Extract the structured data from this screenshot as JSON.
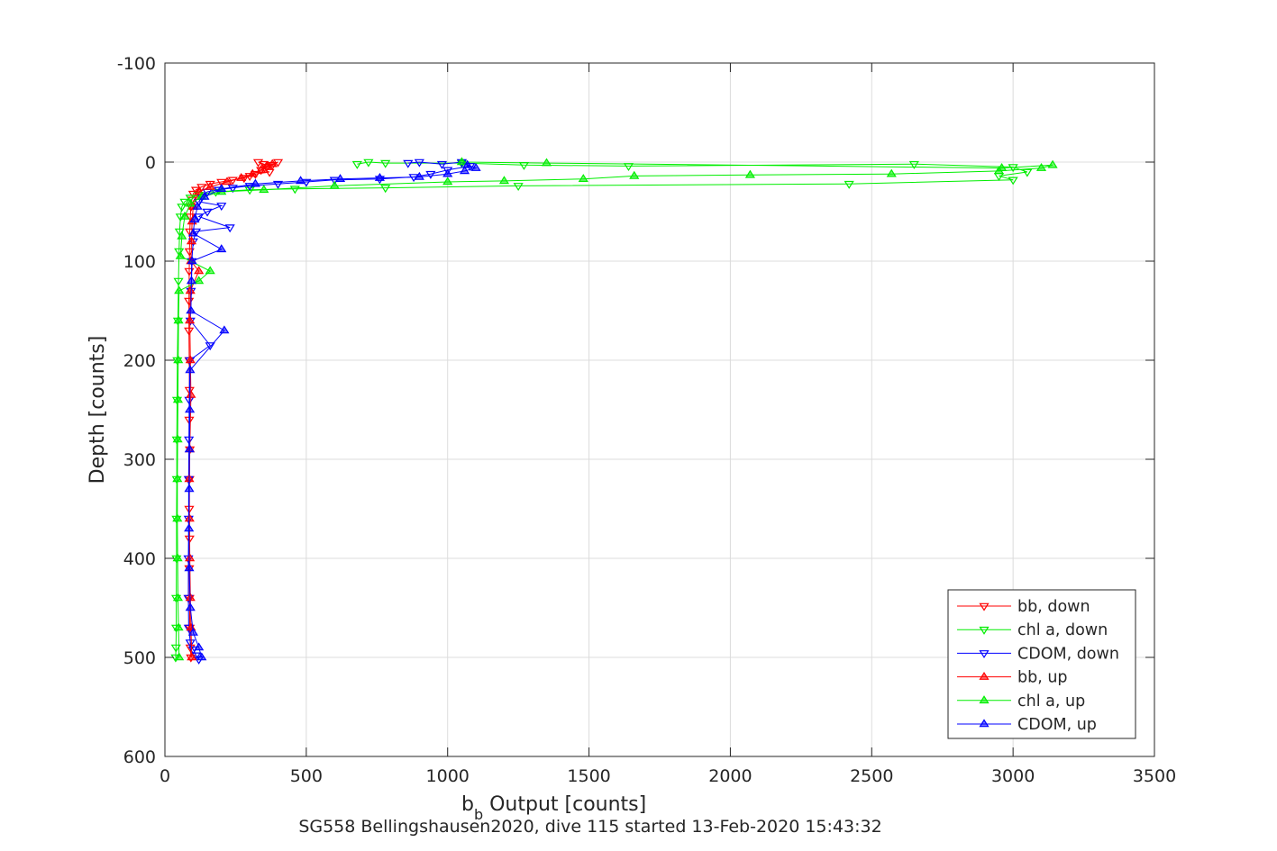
{
  "chart_data": {
    "type": "line",
    "title": "",
    "xlabel_main": "b",
    "xlabel_sub": "b",
    "xlabel_rest": " Output [counts]",
    "ylabel": "Depth [counts]",
    "caption": "SG558 Bellingshausen2020, dive 115 started 13-Feb-2020 15:43:32",
    "xlim": [
      0,
      3500
    ],
    "ylim": [
      -100,
      600
    ],
    "y_reversed": true,
    "grid": true,
    "legend_position": "bottom-right",
    "x_ticks": [
      0,
      500,
      1000,
      1500,
      2000,
      2500,
      3000,
      3500
    ],
    "x_tick_labels": [
      "0",
      "500",
      "1000",
      "1500",
      "2000",
      "2500",
      "3000",
      "3500"
    ],
    "y_ticks": [
      -100,
      0,
      100,
      200,
      300,
      400,
      500,
      600
    ],
    "y_tick_labels": [
      "-100",
      "0",
      "100",
      "200",
      "300",
      "400",
      "500",
      "600"
    ],
    "series": [
      {
        "name": "bb, down",
        "color": "#ff0000",
        "marker": "triangle-down",
        "points": [
          [
            330,
            0
          ],
          [
            350,
            2
          ],
          [
            380,
            3
          ],
          [
            400,
            0
          ],
          [
            360,
            5
          ],
          [
            340,
            8
          ],
          [
            370,
            10
          ],
          [
            320,
            12
          ],
          [
            300,
            14
          ],
          [
            280,
            16
          ],
          [
            240,
            18
          ],
          [
            200,
            20
          ],
          [
            160,
            22
          ],
          [
            130,
            25
          ],
          [
            110,
            28
          ],
          [
            100,
            32
          ],
          [
            95,
            38
          ],
          [
            92,
            45
          ],
          [
            90,
            55
          ],
          [
            88,
            70
          ],
          [
            87,
            90
          ],
          [
            86,
            110
          ],
          [
            85,
            140
          ],
          [
            85,
            170
          ],
          [
            86,
            200
          ],
          [
            87,
            230
          ],
          [
            86,
            260
          ],
          [
            88,
            290
          ],
          [
            87,
            320
          ],
          [
            86,
            350
          ],
          [
            87,
            380
          ],
          [
            86,
            410
          ],
          [
            87,
            440
          ],
          [
            88,
            470
          ],
          [
            90,
            490
          ],
          [
            92,
            500
          ]
        ]
      },
      {
        "name": "chl a, down",
        "color": "#00ee00",
        "marker": "triangle-down",
        "points": [
          [
            680,
            2
          ],
          [
            720,
            0
          ],
          [
            780,
            1
          ],
          [
            1050,
            1
          ],
          [
            1270,
            3
          ],
          [
            1640,
            4
          ],
          [
            2650,
            2
          ],
          [
            3000,
            5
          ],
          [
            3050,
            10
          ],
          [
            2950,
            14
          ],
          [
            3000,
            18
          ],
          [
            2420,
            22
          ],
          [
            1250,
            24
          ],
          [
            780,
            26
          ],
          [
            460,
            27
          ],
          [
            300,
            28
          ],
          [
            180,
            30
          ],
          [
            120,
            33
          ],
          [
            90,
            36
          ],
          [
            70,
            40
          ],
          [
            60,
            45
          ],
          [
            55,
            55
          ],
          [
            52,
            70
          ],
          [
            50,
            90
          ],
          [
            48,
            120
          ],
          [
            46,
            160
          ],
          [
            44,
            200
          ],
          [
            43,
            240
          ],
          [
            42,
            280
          ],
          [
            42,
            320
          ],
          [
            41,
            360
          ],
          [
            41,
            400
          ],
          [
            40,
            440
          ],
          [
            40,
            470
          ],
          [
            39,
            490
          ],
          [
            38,
            500
          ]
        ]
      },
      {
        "name": "CDOM, down",
        "color": "#0000ff",
        "marker": "triangle-down",
        "points": [
          [
            860,
            1
          ],
          [
            900,
            0
          ],
          [
            980,
            2
          ],
          [
            1050,
            0
          ],
          [
            1080,
            4
          ],
          [
            1000,
            8
          ],
          [
            940,
            12
          ],
          [
            880,
            15
          ],
          [
            760,
            17
          ],
          [
            600,
            18
          ],
          [
            500,
            20
          ],
          [
            400,
            22
          ],
          [
            300,
            24
          ],
          [
            240,
            26
          ],
          [
            190,
            28
          ],
          [
            150,
            30
          ],
          [
            130,
            35
          ],
          [
            120,
            40
          ],
          [
            200,
            44
          ],
          [
            150,
            50
          ],
          [
            120,
            55
          ],
          [
            230,
            66
          ],
          [
            110,
            70
          ],
          [
            100,
            80
          ],
          [
            95,
            100
          ],
          [
            92,
            130
          ],
          [
            90,
            160
          ],
          [
            160,
            185
          ],
          [
            88,
            200
          ],
          [
            86,
            240
          ],
          [
            85,
            280
          ],
          [
            84,
            320
          ],
          [
            84,
            360
          ],
          [
            83,
            400
          ],
          [
            83,
            440
          ],
          [
            84,
            470
          ],
          [
            90,
            485
          ],
          [
            100,
            492
          ],
          [
            110,
            498
          ],
          [
            120,
            502
          ]
        ]
      },
      {
        "name": "bb, up",
        "color": "#ff0000",
        "marker": "triangle-up",
        "points": [
          [
            95,
            500
          ],
          [
            92,
            470
          ],
          [
            90,
            440
          ],
          [
            88,
            400
          ],
          [
            87,
            360
          ],
          [
            86,
            320
          ],
          [
            88,
            290
          ],
          [
            92,
            235
          ],
          [
            90,
            200
          ],
          [
            88,
            160
          ],
          [
            90,
            130
          ],
          [
            120,
            110
          ],
          [
            92,
            100
          ],
          [
            94,
            80
          ],
          [
            96,
            60
          ],
          [
            100,
            45
          ],
          [
            120,
            30
          ],
          [
            160,
            25
          ],
          [
            220,
            20
          ],
          [
            270,
            16
          ],
          [
            310,
            12
          ],
          [
            340,
            8
          ],
          [
            360,
            4
          ],
          [
            380,
            2
          ]
        ]
      },
      {
        "name": "chl a, up",
        "color": "#00ee00",
        "marker": "triangle-up",
        "points": [
          [
            50,
            500
          ],
          [
            48,
            470
          ],
          [
            46,
            440
          ],
          [
            45,
            400
          ],
          [
            44,
            360
          ],
          [
            44,
            320
          ],
          [
            45,
            280
          ],
          [
            46,
            240
          ],
          [
            47,
            200
          ],
          [
            48,
            160
          ],
          [
            50,
            130
          ],
          [
            120,
            120
          ],
          [
            160,
            110
          ],
          [
            55,
            95
          ],
          [
            60,
            75
          ],
          [
            70,
            55
          ],
          [
            90,
            42
          ],
          [
            130,
            35
          ],
          [
            200,
            30
          ],
          [
            350,
            28
          ],
          [
            600,
            24
          ],
          [
            1000,
            20
          ],
          [
            1200,
            19
          ],
          [
            1480,
            17
          ],
          [
            1660,
            14
          ],
          [
            2070,
            13
          ],
          [
            2570,
            12
          ],
          [
            2950,
            9
          ],
          [
            3100,
            6
          ],
          [
            3140,
            3
          ],
          [
            2960,
            6
          ],
          [
            1350,
            1
          ],
          [
            1050,
            0
          ]
        ]
      },
      {
        "name": "CDOM, up",
        "color": "#0000ff",
        "marker": "triangle-up",
        "points": [
          [
            130,
            500
          ],
          [
            120,
            490
          ],
          [
            100,
            475
          ],
          [
            90,
            450
          ],
          [
            86,
            410
          ],
          [
            85,
            370
          ],
          [
            86,
            330
          ],
          [
            87,
            290
          ],
          [
            88,
            250
          ],
          [
            89,
            210
          ],
          [
            210,
            170
          ],
          [
            92,
            150
          ],
          [
            94,
            120
          ],
          [
            96,
            100
          ],
          [
            200,
            88
          ],
          [
            100,
            72
          ],
          [
            105,
            58
          ],
          [
            115,
            45
          ],
          [
            140,
            35
          ],
          [
            200,
            27
          ],
          [
            320,
            22
          ],
          [
            480,
            19
          ],
          [
            620,
            17
          ],
          [
            760,
            16
          ],
          [
            900,
            15
          ],
          [
            1000,
            12
          ],
          [
            1060,
            9
          ],
          [
            1100,
            6
          ],
          [
            1070,
            3
          ]
        ]
      }
    ]
  }
}
